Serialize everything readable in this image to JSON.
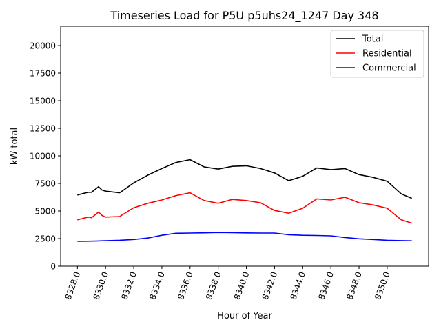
{
  "chart_data": {
    "type": "line",
    "title": "Timeseries Load for P5U p5uhs24_1247  Day 348",
    "xlabel": "Hour of Year",
    "ylabel": "kW total",
    "xlim": [
      8326.81,
      8352.94
    ],
    "ylim": [
      0,
      21750
    ],
    "xticks": [
      8328,
      8330,
      8332,
      8334,
      8336,
      8338,
      8340,
      8342,
      8344,
      8346,
      8348,
      8350
    ],
    "xtick_labels": [
      "8328.0",
      "8330.0",
      "8332.0",
      "8334.0",
      "8336.0",
      "8338.0",
      "8340.0",
      "8342.0",
      "8344.0",
      "8346.0",
      "8348.0",
      "8350.0"
    ],
    "yticks": [
      0,
      2500,
      5000,
      7500,
      10000,
      12500,
      15000,
      17500,
      20000
    ],
    "ytick_labels": [
      "0",
      "2500",
      "5000",
      "7500",
      "10000",
      "12500",
      "15000",
      "17500",
      "20000"
    ],
    "grid": false,
    "legend_position": "top-right",
    "x": [
      8328,
      8328.75,
      8329,
      8329.5,
      8329.75,
      8330,
      8331,
      8332,
      8333,
      8334,
      8335,
      8336,
      8337,
      8338,
      8339,
      8340,
      8341,
      8342,
      8343,
      8344,
      8345,
      8346,
      8347,
      8348,
      8349,
      8350,
      8351,
      8351.75
    ],
    "series": [
      {
        "name": "Total",
        "color": "#000000",
        "values": [
          6450,
          6700,
          6700,
          7200,
          6900,
          6800,
          6650,
          7550,
          8250,
          8850,
          9400,
          9650,
          9000,
          8800,
          9050,
          9100,
          8850,
          8450,
          7750,
          8150,
          8900,
          8750,
          8850,
          8300,
          8050,
          7700,
          6550,
          6150
        ]
      },
      {
        "name": "Residential",
        "color": "#ff0000",
        "values": [
          4200,
          4450,
          4400,
          4900,
          4600,
          4450,
          4500,
          5300,
          5700,
          6000,
          6400,
          6650,
          5950,
          5700,
          6050,
          5950,
          5750,
          5050,
          4800,
          5250,
          6100,
          6000,
          6250,
          5750,
          5550,
          5250,
          4200,
          3900
        ]
      },
      {
        "name": "Commercial",
        "color": "#0000ff",
        "values": [
          2250,
          2260,
          2270,
          2290,
          2300,
          2310,
          2350,
          2420,
          2550,
          2800,
          2980,
          3000,
          3020,
          3050,
          3040,
          3010,
          3000,
          3000,
          2850,
          2800,
          2780,
          2750,
          2600,
          2480,
          2420,
          2350,
          2320,
          2300
        ]
      }
    ]
  }
}
